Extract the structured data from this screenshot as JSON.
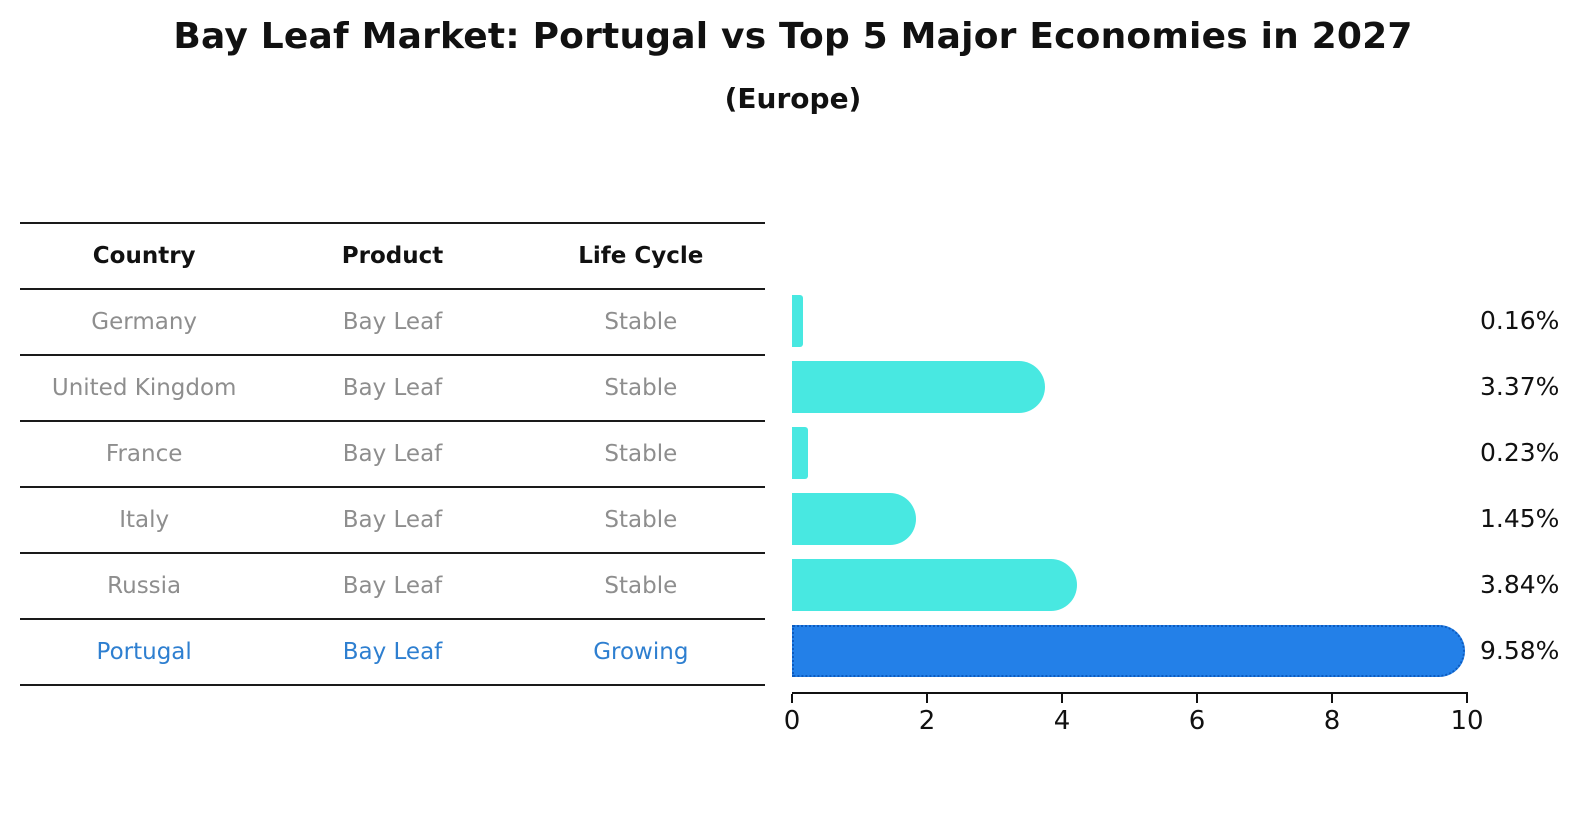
{
  "title": "Bay Leaf Market: Portugal vs Top 5 Major Economies in 2027",
  "subtitle": "(Europe)",
  "table": {
    "headers": [
      "Country",
      "Product",
      "Life Cycle"
    ],
    "rows": [
      {
        "country": "Germany",
        "product": "Bay Leaf",
        "life_cycle": "Stable",
        "highlight": false
      },
      {
        "country": "United Kingdom",
        "product": "Bay Leaf",
        "life_cycle": "Stable",
        "highlight": false
      },
      {
        "country": "France",
        "product": "Bay Leaf",
        "life_cycle": "Stable",
        "highlight": false
      },
      {
        "country": "Italy",
        "product": "Bay Leaf",
        "life_cycle": "Stable",
        "highlight": false
      },
      {
        "country": "Russia",
        "product": "Bay Leaf",
        "life_cycle": "Stable",
        "highlight": false
      },
      {
        "country": "Portugal",
        "product": "Bay Leaf",
        "life_cycle": "Growing",
        "highlight": true
      }
    ]
  },
  "chart_data": {
    "type": "bar",
    "orientation": "horizontal",
    "title": "Bay Leaf Market: Portugal vs Top 5 Major Economies in 2027",
    "subtitle": "(Europe)",
    "categories": [
      "Germany",
      "United Kingdom",
      "France",
      "Italy",
      "Russia",
      "Portugal"
    ],
    "values": [
      0.16,
      3.37,
      0.23,
      1.45,
      3.84,
      9.58
    ],
    "value_labels": [
      "0.16%",
      "3.37%",
      "0.23%",
      "1.45%",
      "3.84%",
      "9.58%"
    ],
    "highlight_category": "Portugal",
    "xticks": [
      0,
      2,
      4,
      6,
      8,
      10
    ],
    "xtick_labels": [
      "0",
      "2",
      "4",
      "6",
      "8",
      "10"
    ],
    "xlim": [
      0,
      10
    ],
    "grid": false,
    "legend": false,
    "colors": {
      "bar_default": "#48e8e1",
      "bar_highlight": "#2380e8",
      "bar_highlight_border": "#0d5bbf",
      "row_text": "#8e8e8e",
      "highlight_text": "#2e7fd0",
      "axis_text": "#111111"
    }
  }
}
